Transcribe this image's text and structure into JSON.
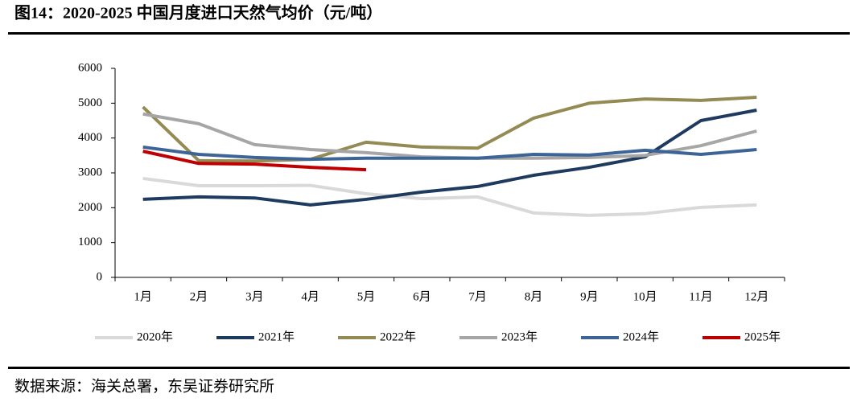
{
  "chart_data": {
    "type": "line",
    "title": "图14：2020-2025 中国月度进口天然气均价（元/吨）",
    "source": "数据来源：海关总署，东吴证券研究所",
    "categories": [
      "1月",
      "2月",
      "3月",
      "4月",
      "5月",
      "6月",
      "7月",
      "8月",
      "9月",
      "10月",
      "11月",
      "12月"
    ],
    "series": [
      {
        "name": "2020年",
        "color": "#d9d9d9",
        "values": [
          2840,
          2630,
          2630,
          2640,
          2400,
          2260,
          2310,
          1850,
          1780,
          1830,
          2010,
          2080
        ]
      },
      {
        "name": "2021年",
        "color": "#1f3a5f",
        "values": [
          2240,
          2310,
          2280,
          2080,
          2240,
          2450,
          2610,
          2930,
          3160,
          3460,
          4500,
          4800
        ]
      },
      {
        "name": "2022年",
        "color": "#948a54",
        "values": [
          4890,
          3350,
          3340,
          3390,
          3880,
          3740,
          3710,
          4570,
          5000,
          5120,
          5080,
          5170
        ]
      },
      {
        "name": "2023年",
        "color": "#a6a6a6",
        "values": [
          4690,
          4410,
          3810,
          3670,
          3580,
          3460,
          3420,
          3420,
          3440,
          3500,
          3780,
          4200
        ]
      },
      {
        "name": "2024年",
        "color": "#3d6496",
        "values": [
          3740,
          3530,
          3440,
          3390,
          3420,
          3420,
          3420,
          3530,
          3510,
          3650,
          3530,
          3670
        ]
      },
      {
        "name": "2025年",
        "color": "#c00000",
        "values": [
          3620,
          3270,
          3250,
          3160,
          3090,
          null,
          null,
          null,
          null,
          null,
          null,
          null
        ]
      }
    ],
    "ylim": [
      0,
      6000
    ],
    "yticks": [
      0,
      1000,
      2000,
      3000,
      4000,
      5000,
      6000
    ],
    "grid": false,
    "legend": "bottom"
  }
}
